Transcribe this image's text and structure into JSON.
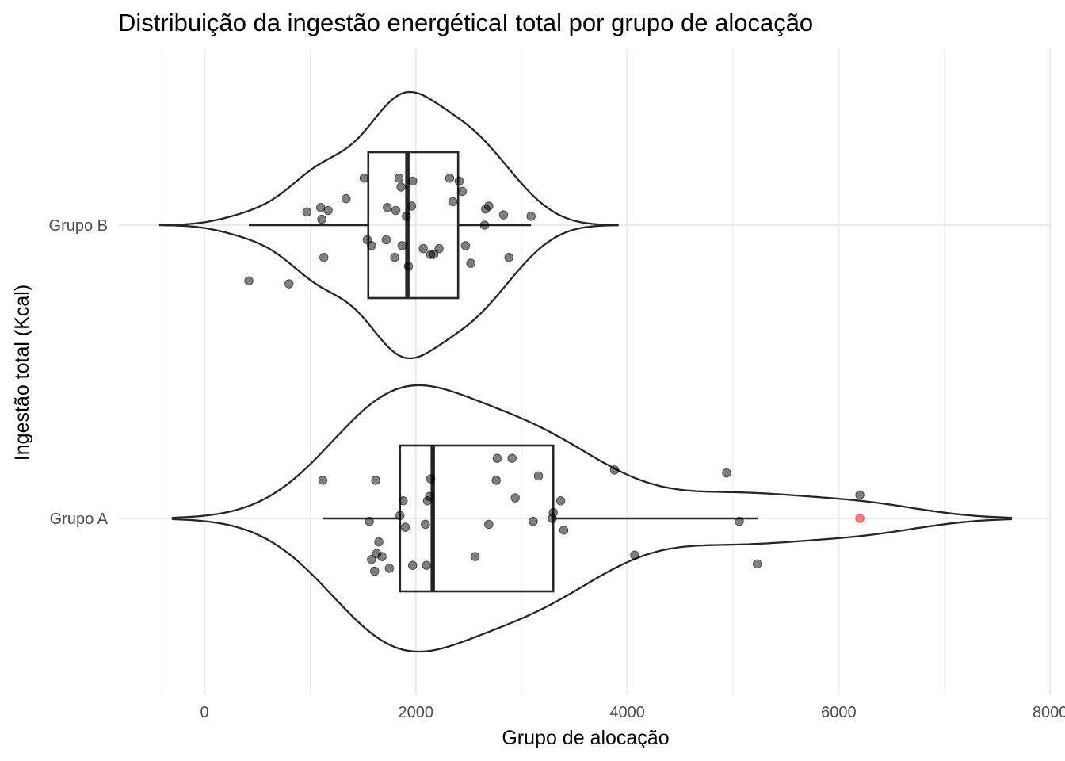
{
  "chart_data": {
    "type": "violin",
    "title": "Distribuição da ingestão energéticaI total por grupo de alocação",
    "xlabel": "Grupo de alocação",
    "ylabel": "Ingestão total (Kcal)",
    "xlim": [
      -800,
      8000
    ],
    "x_ticks": [
      0,
      2000,
      4000,
      6000,
      8000
    ],
    "x_tick_labels": [
      "0",
      "2000",
      "4000",
      "6000",
      "8000"
    ],
    "grid": true,
    "legend": "none",
    "colors": {
      "line": "#262626",
      "point": "#000000",
      "highlight": "#ff0000",
      "grid": "#ebebeb"
    },
    "categories": [
      "Grupo A",
      "Grupo B"
    ],
    "groups": [
      {
        "name": "Grupo B",
        "violin_range": [
          -420,
          3910
        ],
        "box": {
          "q1": 1550,
          "median": 1920,
          "q3": 2400,
          "whisker_low": 420,
          "whisker_high": 3090
        },
        "points": [
          [
            420,
            -0.19
          ],
          [
            800,
            -0.2
          ],
          [
            970,
            0.045
          ],
          [
            1100,
            0.06
          ],
          [
            1110,
            0.02
          ],
          [
            1130,
            -0.11
          ],
          [
            1170,
            0.05
          ],
          [
            1340,
            0.09
          ],
          [
            1510,
            0.16
          ],
          [
            1540,
            -0.05
          ],
          [
            1580,
            -0.07
          ],
          [
            1720,
            -0.05
          ],
          [
            1730,
            0.06
          ],
          [
            1800,
            -0.11
          ],
          [
            1810,
            0.05
          ],
          [
            1840,
            0.16
          ],
          [
            1860,
            0.13
          ],
          [
            1870,
            -0.07
          ],
          [
            1910,
            0.03
          ],
          [
            1930,
            -0.14
          ],
          [
            1960,
            0.065
          ],
          [
            1970,
            0.15
          ],
          [
            2070,
            -0.08
          ],
          [
            2140,
            -0.1
          ],
          [
            2170,
            -0.1
          ],
          [
            2220,
            -0.08
          ],
          [
            2320,
            0.16
          ],
          [
            2350,
            0.08
          ],
          [
            2410,
            0.15
          ],
          [
            2440,
            0.115
          ],
          [
            2470,
            -0.07
          ],
          [
            2520,
            -0.13
          ],
          [
            2650,
            0.0
          ],
          [
            2660,
            0.055
          ],
          [
            2690,
            0.065
          ],
          [
            2830,
            0.035
          ],
          [
            2880,
            -0.11
          ],
          [
            3090,
            0.03
          ]
        ],
        "highlight_points": []
      },
      {
        "name": "Grupo A",
        "violin_range": [
          -300,
          7630
        ],
        "box": {
          "q1": 1850,
          "median": 2160,
          "q3": 3300,
          "whisker_low": 1120,
          "whisker_high": 5240
        },
        "points": [
          [
            1120,
            0.13
          ],
          [
            1560,
            -0.01
          ],
          [
            1580,
            -0.14
          ],
          [
            1610,
            -0.18
          ],
          [
            1620,
            0.13
          ],
          [
            1630,
            -0.12
          ],
          [
            1650,
            -0.08
          ],
          [
            1680,
            -0.13
          ],
          [
            1750,
            -0.17
          ],
          [
            1850,
            0.01
          ],
          [
            1880,
            0.06
          ],
          [
            1900,
            -0.03
          ],
          [
            1970,
            -0.16
          ],
          [
            2090,
            -0.02
          ],
          [
            2100,
            -0.16
          ],
          [
            2110,
            0.06
          ],
          [
            2130,
            0.075
          ],
          [
            2140,
            0.135
          ],
          [
            2560,
            -0.13
          ],
          [
            2690,
            -0.02
          ],
          [
            2760,
            0.13
          ],
          [
            2770,
            0.205
          ],
          [
            2910,
            0.205
          ],
          [
            2940,
            0.07
          ],
          [
            3110,
            -0.01
          ],
          [
            3160,
            0.145
          ],
          [
            3290,
            0.0
          ],
          [
            3300,
            0.02
          ],
          [
            3370,
            0.06
          ],
          [
            3400,
            -0.04
          ],
          [
            3880,
            0.165
          ],
          [
            4070,
            -0.125
          ],
          [
            4940,
            0.155
          ],
          [
            5060,
            -0.01
          ],
          [
            5230,
            -0.155
          ],
          [
            6200,
            0.08
          ]
        ],
        "highlight_points": [
          [
            6200,
            0.0
          ]
        ]
      }
    ]
  }
}
